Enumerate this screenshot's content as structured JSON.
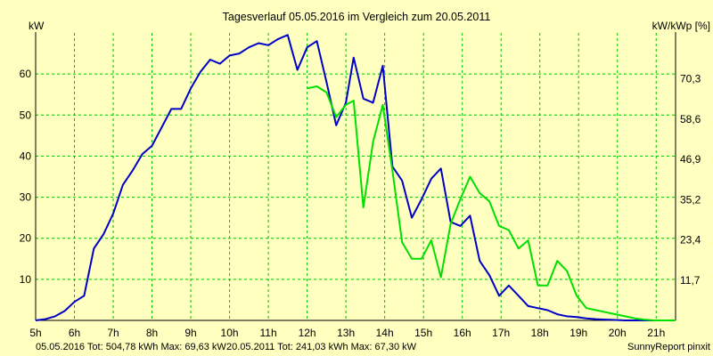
{
  "chart_data": {
    "type": "line",
    "title": "Tagesverlauf 05.05.2016 im Vergleich zum 20.05.2011",
    "ylabel_left": "kW",
    "ylabel_right": "kW/kWp [%]",
    "x_ticks": [
      "5h",
      "6h",
      "7h",
      "8h",
      "9h",
      "10h",
      "11h",
      "12h",
      "13h",
      "14h",
      "15h",
      "16h",
      "17h",
      "18h",
      "19h",
      "20h",
      "21h"
    ],
    "x_range": [
      5,
      21.5
    ],
    "y_range": [
      0,
      70
    ],
    "y_ticks_left": [
      "10",
      "20",
      "30",
      "40",
      "50",
      "60"
    ],
    "y_ticks_left_values": [
      10,
      20,
      30,
      40,
      50,
      60
    ],
    "y_ticks_right": [
      "11,7",
      "23,4",
      "35,2",
      "46,9",
      "58,6",
      "70,3"
    ],
    "y_ticks_right_values": [
      9.8,
      19.6,
      29.4,
      39.2,
      49.0,
      58.8
    ],
    "grid": true,
    "series": [
      {
        "name": "05.05.2016",
        "color": "#0000c8",
        "x": [
          5.0,
          5.25,
          5.5,
          5.75,
          6.0,
          6.25,
          6.5,
          6.75,
          7.0,
          7.25,
          7.5,
          7.75,
          8.0,
          8.25,
          8.5,
          8.75,
          9.0,
          9.25,
          9.5,
          9.75,
          10.0,
          10.25,
          10.5,
          10.75,
          11.0,
          11.25,
          11.5,
          11.75,
          12.0,
          12.25,
          12.5,
          12.75,
          13.0,
          13.2,
          13.45,
          13.7,
          13.95,
          14.2,
          14.45,
          14.7,
          14.95,
          15.2,
          15.45,
          15.7,
          15.95,
          16.2,
          16.45,
          16.7,
          16.95,
          17.2,
          17.45,
          17.7,
          17.95,
          18.2,
          18.45,
          18.7,
          18.95,
          19.2,
          19.45,
          19.7,
          19.95,
          20.2,
          20.45,
          20.7,
          20.95,
          21.2,
          21.5
        ],
        "y": [
          0,
          0.3,
          1.0,
          2.3,
          4.5,
          6.0,
          17.5,
          21.0,
          26.0,
          33.0,
          36.5,
          40.5,
          42.5,
          47.0,
          51.5,
          51.5,
          56.5,
          60.5,
          63.5,
          62.5,
          64.5,
          65.0,
          66.5,
          67.5,
          67.0,
          68.5,
          69.5,
          61.0,
          66.5,
          68.0,
          58.0,
          47.5,
          53.0,
          64.0,
          54.0,
          53.0,
          62.0,
          37.5,
          34.0,
          25.0,
          29.5,
          34.5,
          37.0,
          24.0,
          23.0,
          25.5,
          14.5,
          11.0,
          6.0,
          8.5,
          6.0,
          3.5,
          3.0,
          2.5,
          1.5,
          1.0,
          0.8,
          0.5,
          0.3,
          0.2,
          0.1,
          0,
          0,
          0,
          0,
          0,
          0
        ]
      },
      {
        "name": "20.05.2011",
        "color": "#00e000",
        "x": [
          12.0,
          12.25,
          12.5,
          12.75,
          13.0,
          13.2,
          13.45,
          13.7,
          13.95,
          14.2,
          14.45,
          14.7,
          14.95,
          15.2,
          15.45,
          15.7,
          15.95,
          16.2,
          16.45,
          16.7,
          16.95,
          17.2,
          17.45,
          17.7,
          17.95,
          18.2,
          18.45,
          18.7,
          18.95,
          19.2,
          19.45,
          19.7,
          19.95,
          20.2,
          20.45,
          20.7,
          20.95,
          21.2,
          21.5
        ],
        "y": [
          56.5,
          57.0,
          55.5,
          49.5,
          52.5,
          53.5,
          27.5,
          43.5,
          52.5,
          36.5,
          19.0,
          15.0,
          15.0,
          19.5,
          10.5,
          23.5,
          29.5,
          35.0,
          31.0,
          29.0,
          23.0,
          22.0,
          17.5,
          19.5,
          8.5,
          8.5,
          14.5,
          12.0,
          6.0,
          3.0,
          2.5,
          2.0,
          1.5,
          1.0,
          0.5,
          0.2,
          0,
          0,
          0
        ]
      }
    ],
    "footer": {
      "series1_text": "05.05.2016 Tot: 504,78 kWh Max: 69,63 kW",
      "series2_text": "20.05.2011 Tot: 241,03 kWh Max: 67,30 kW",
      "credit": "SunnyReport pinxit"
    },
    "colors": {
      "background": "#ffffc0",
      "grid": "#00c000",
      "axis": "#000000"
    }
  }
}
